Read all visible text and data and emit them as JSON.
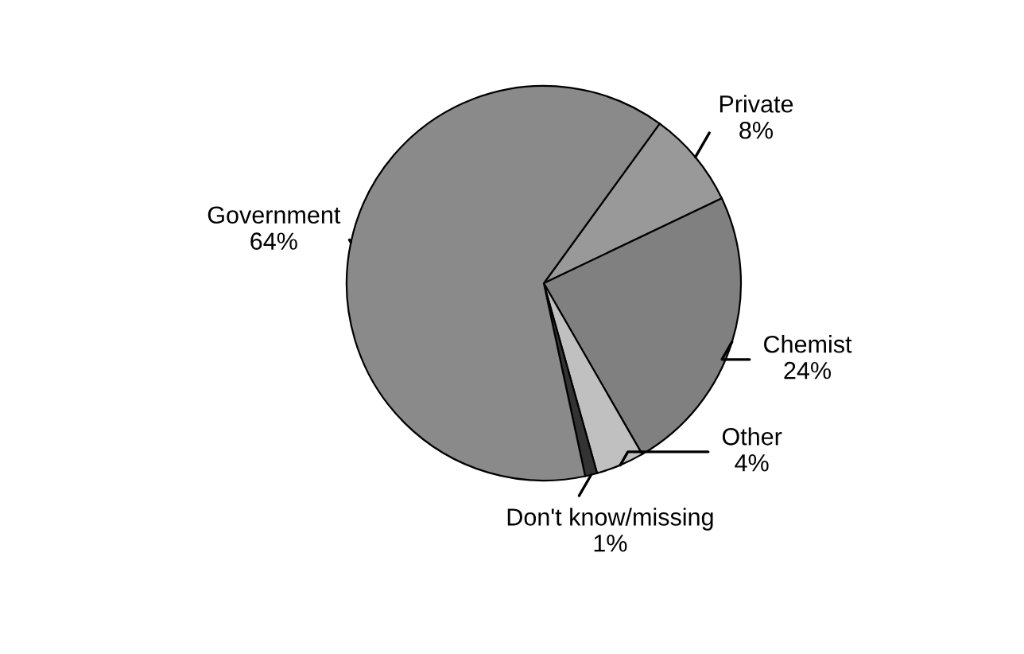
{
  "chart_data": {
    "type": "pie",
    "categories": [
      "Private",
      "Chemist",
      "Other",
      "Don't know/missing",
      "Government"
    ],
    "values": [
      8,
      24,
      4,
      1,
      64
    ],
    "colors": [
      "#999999",
      "#808080",
      "#c0c0c0",
      "#333333",
      "#8a8a8a"
    ],
    "value_labels": [
      "8%",
      "24%",
      "4%",
      "1%",
      "64%"
    ]
  }
}
